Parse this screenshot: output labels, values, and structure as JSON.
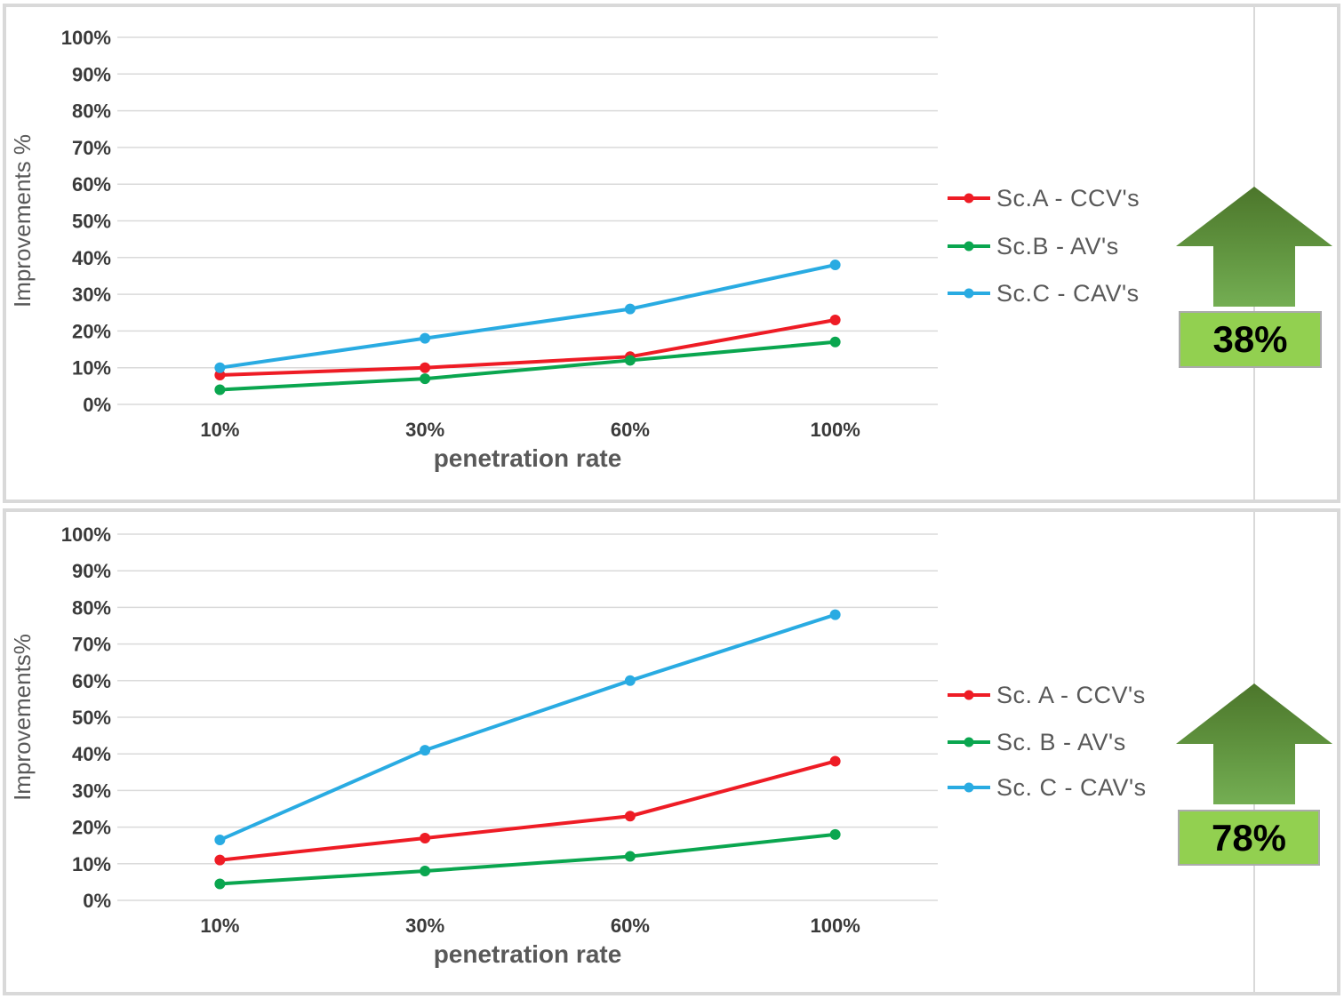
{
  "colors": {
    "panel_border": "#d9d9d9",
    "gridline": "#dadada",
    "vertical_rule": "#d9d9d9",
    "tick_text": "#3a3a3a",
    "axis_title_text": "#595959",
    "legend_text": "#595959",
    "series_red": "#ee1c25",
    "series_green": "#0aa64f",
    "series_blue": "#29abe2",
    "arrow_gradient_top": "#4c762b",
    "arrow_gradient_bottom": "#74ae53",
    "callout_fill": "#92d050",
    "callout_border": "#ababab",
    "callout_text": "#000000"
  },
  "chart_data": [
    {
      "type": "line",
      "title": "",
      "x": [
        "10%",
        "30%",
        "60%",
        "100%"
      ],
      "xlabel": "penetration rate",
      "ylabel": "Improvements %",
      "ylim": [
        0,
        100
      ],
      "yticks": [
        "0%",
        "10%",
        "20%",
        "30%",
        "40%",
        "50%",
        "60%",
        "70%",
        "80%",
        "90%",
        "100%"
      ],
      "grid": true,
      "legend_position": "right",
      "series": [
        {
          "name": "Sc.A - CCV's",
          "color": "#ee1c25",
          "values": [
            8,
            10,
            13,
            23
          ]
        },
        {
          "name": "Sc.B - AV's",
          "color": "#0aa64f",
          "values": [
            4,
            7,
            12,
            17
          ]
        },
        {
          "name": "Sc.C - CAV's",
          "color": "#29abe2",
          "values": [
            10,
            18,
            26,
            38
          ]
        }
      ],
      "annotation": {
        "shape": "up-arrow",
        "label": "38%"
      }
    },
    {
      "type": "line",
      "title": "",
      "x": [
        "10%",
        "30%",
        "60%",
        "100%"
      ],
      "xlabel": "penetration rate",
      "ylabel": "Improvements%",
      "ylim": [
        0,
        100
      ],
      "yticks": [
        "0%",
        "10%",
        "20%",
        "30%",
        "40%",
        "50%",
        "60%",
        "70%",
        "80%",
        "90%",
        "100%"
      ],
      "grid": true,
      "legend_position": "right",
      "series": [
        {
          "name": "Sc. A - CCV's",
          "color": "#ee1c25",
          "values": [
            11,
            17,
            23,
            38
          ]
        },
        {
          "name": "Sc. B - AV's",
          "color": "#0aa64f",
          "values": [
            4.5,
            8,
            12,
            18
          ]
        },
        {
          "name": "Sc. C - CAV's",
          "color": "#29abe2",
          "values": [
            16.5,
            41,
            60,
            78
          ]
        }
      ],
      "annotation": {
        "shape": "up-arrow",
        "label": "78%"
      }
    }
  ]
}
